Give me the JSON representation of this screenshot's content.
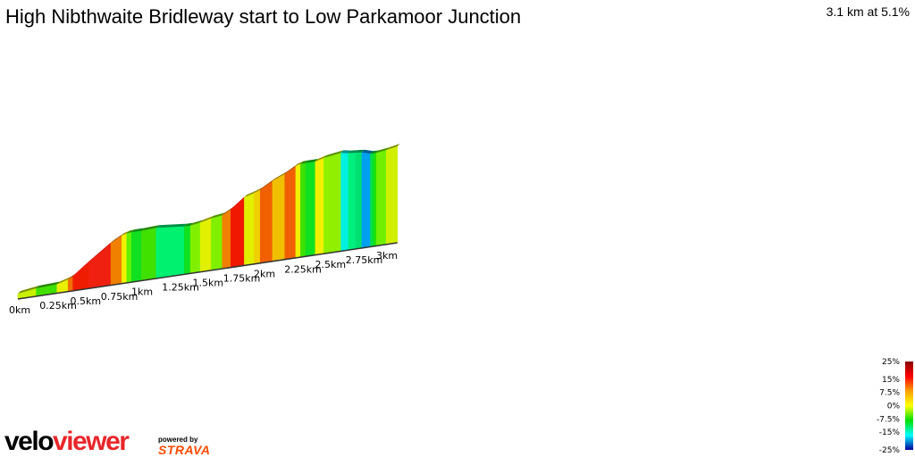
{
  "title": "High Nibthwaite Bridleway start to Low Parkamoor Junction",
  "summary": "3.1 km at 5.1%",
  "chart_data": {
    "type": "area",
    "title": "High Nibthwaite Bridleway start to Low Parkamoor Junction",
    "total_distance_km": 3.1,
    "average_gradient_pct": 5.1,
    "x_tick_labels": [
      "0km",
      "0.25km",
      "0.5km",
      "0.75km",
      "1km",
      "1.25km",
      "1.5km",
      "1.75km",
      "2km",
      "2.25km",
      "2.5km",
      "2.75km",
      "3km"
    ],
    "x_ticks_km": [
      0,
      0.25,
      0.5,
      0.75,
      1,
      1.25,
      1.5,
      1.75,
      2,
      2.25,
      2.5,
      2.75,
      3
    ],
    "segments": [
      {
        "from": 0,
        "to": 0.15,
        "gradient": 3,
        "color": "#c8f000"
      },
      {
        "from": 0.15,
        "to": 0.32,
        "gradient": 1,
        "color": "#40e000"
      },
      {
        "from": 0.32,
        "to": 0.41,
        "gradient": 6,
        "color": "#e8f000"
      },
      {
        "from": 0.41,
        "to": 0.45,
        "gradient": 11,
        "color": "#f07000"
      },
      {
        "from": 0.45,
        "to": 0.58,
        "gradient": 16,
        "color": "#f01c00"
      },
      {
        "from": 0.58,
        "to": 0.76,
        "gradient": 15,
        "color": "#f02010"
      },
      {
        "from": 0.76,
        "to": 0.85,
        "gradient": 11,
        "color": "#f08000"
      },
      {
        "from": 0.85,
        "to": 0.89,
        "gradient": 6,
        "color": "#f0f000"
      },
      {
        "from": 0.89,
        "to": 0.93,
        "gradient": 2,
        "color": "#60f000"
      },
      {
        "from": 0.93,
        "to": 1.01,
        "gradient": 0,
        "color": "#10e020"
      },
      {
        "from": 1.01,
        "to": 1.13,
        "gradient": 1,
        "color": "#40e000"
      },
      {
        "from": 1.13,
        "to": 1.36,
        "gradient": -2,
        "color": "#00f070"
      },
      {
        "from": 1.36,
        "to": 1.41,
        "gradient": 0,
        "color": "#10e020"
      },
      {
        "from": 1.41,
        "to": 1.49,
        "gradient": 3,
        "color": "#80f000"
      },
      {
        "from": 1.49,
        "to": 1.58,
        "gradient": 5,
        "color": "#e0f000"
      },
      {
        "from": 1.58,
        "to": 1.67,
        "gradient": 3,
        "color": "#80f000"
      },
      {
        "from": 1.67,
        "to": 1.74,
        "gradient": 11,
        "color": "#f08000"
      },
      {
        "from": 1.74,
        "to": 1.85,
        "gradient": 16,
        "color": "#f01800"
      },
      {
        "from": 1.85,
        "to": 1.93,
        "gradient": 6,
        "color": "#e0f000"
      },
      {
        "from": 1.93,
        "to": 1.98,
        "gradient": 8,
        "color": "#f0d000"
      },
      {
        "from": 1.98,
        "to": 2.08,
        "gradient": 12,
        "color": "#f06000"
      },
      {
        "from": 2.08,
        "to": 2.18,
        "gradient": 9,
        "color": "#f0c000"
      },
      {
        "from": 2.18,
        "to": 2.27,
        "gradient": 12,
        "color": "#f06000"
      },
      {
        "from": 2.27,
        "to": 2.31,
        "gradient": 6,
        "color": "#f0f000"
      },
      {
        "from": 2.31,
        "to": 2.35,
        "gradient": 1,
        "color": "#40e000"
      },
      {
        "from": 2.35,
        "to": 2.43,
        "gradient": 0,
        "color": "#10e020"
      },
      {
        "from": 2.43,
        "to": 2.5,
        "gradient": 6,
        "color": "#f0f000"
      },
      {
        "from": 2.5,
        "to": 2.64,
        "gradient": 3,
        "color": "#90f000"
      },
      {
        "from": 2.64,
        "to": 2.7,
        "gradient": -4,
        "color": "#00f0e0"
      },
      {
        "from": 2.7,
        "to": 2.76,
        "gradient": -2,
        "color": "#00f080"
      },
      {
        "from": 2.76,
        "to": 2.81,
        "gradient": -2,
        "color": "#00e070"
      },
      {
        "from": 2.81,
        "to": 2.88,
        "gradient": -6,
        "color": "#00a0f0"
      },
      {
        "from": 2.88,
        "to": 2.91,
        "gradient": -1,
        "color": "#00e040"
      },
      {
        "from": 2.91,
        "to": 2.93,
        "gradient": 0,
        "color": "#20e000"
      },
      {
        "from": 2.93,
        "to": 3.01,
        "gradient": 3,
        "color": "#70f000"
      },
      {
        "from": 3.01,
        "to": 3.1,
        "gradient": 4,
        "color": "#d0f000"
      }
    ],
    "legend": {
      "labels": [
        "25%",
        "15%",
        "7.5%",
        "0%",
        "-7.5%",
        "-15%",
        "-25%"
      ],
      "values": [
        25,
        15,
        7.5,
        0,
        -7.5,
        -15,
        -25
      ],
      "colors": [
        "#8b0000",
        "#ff0000",
        "#ffa000",
        "#ffff00",
        "#00e000",
        "#00ffff",
        "#0000a0"
      ],
      "placement": "bottom-right"
    }
  },
  "branding": {
    "logo_part1": "velo",
    "logo_part2": "viewer",
    "powered_by": "powered by",
    "strava": "STRAVA"
  }
}
